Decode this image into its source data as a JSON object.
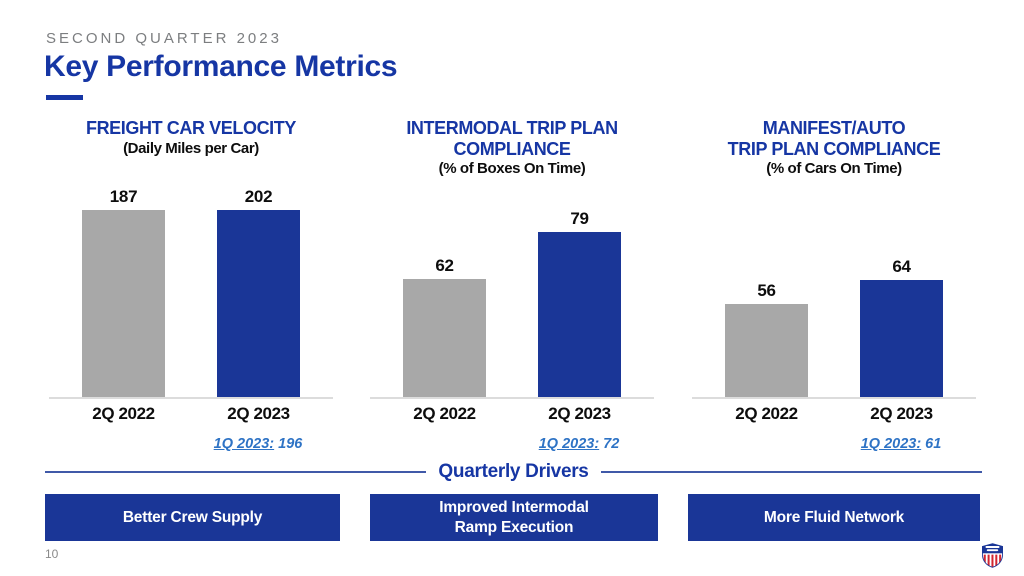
{
  "slide": {
    "eyebrow": "SECOND QUARTER 2023",
    "title": "Key Performance Metrics",
    "page_number": "10",
    "logo": "union-pacific-shield-logo"
  },
  "colors": {
    "brand_blue_fill": "#1a3697",
    "title_blue": "#1636a4",
    "gray_bar": "#a8a8a8",
    "eyebrow_gray": "#7c7e80",
    "footnote_blue": "#2e73c5",
    "baseline_gray": "#dcdcdc",
    "logo_red": "#d22630"
  },
  "chart_data": [
    {
      "type": "bar",
      "title": "FREIGHT CAR VELOCITY",
      "subtitle": "(Daily Miles per Car)",
      "categories": [
        "2Q 2022",
        "2Q 2023"
      ],
      "values": [
        187,
        202
      ],
      "bar_colors": [
        "#a8a8a8",
        "#1a3697"
      ],
      "ylim": [
        0,
        210
      ],
      "grid": false,
      "legend": "none",
      "footnote_label": "1Q 2023:",
      "footnote_value": "196"
    },
    {
      "type": "bar",
      "title": "INTERMODAL TRIP PLAN\nCOMPLIANCE",
      "subtitle": "(% of Boxes On Time)",
      "categories": [
        "2Q 2022",
        "2Q 2023"
      ],
      "values": [
        62,
        79
      ],
      "bar_colors": [
        "#a8a8a8",
        "#1a3697"
      ],
      "ylim": [
        20,
        95
      ],
      "grid": false,
      "legend": "none",
      "footnote_label": "1Q 2023:",
      "footnote_value": "72"
    },
    {
      "type": "bar",
      "title": "MANIFEST/AUTO\nTRIP PLAN COMPLIANCE",
      "subtitle": "(% of Cars On Time)",
      "categories": [
        "2Q 2022",
        "2Q 2023"
      ],
      "values": [
        56,
        64
      ],
      "bar_colors": [
        "#a8a8a8",
        "#1a3697"
      ],
      "ylim": [
        25,
        95
      ],
      "grid": false,
      "legend": "none",
      "footnote_label": "1Q 2023:",
      "footnote_value": "61"
    }
  ],
  "drivers": {
    "heading": "Quarterly Drivers",
    "items": [
      "Better Crew Supply",
      "Improved Intermodal\nRamp Execution",
      "More Fluid Network"
    ]
  }
}
